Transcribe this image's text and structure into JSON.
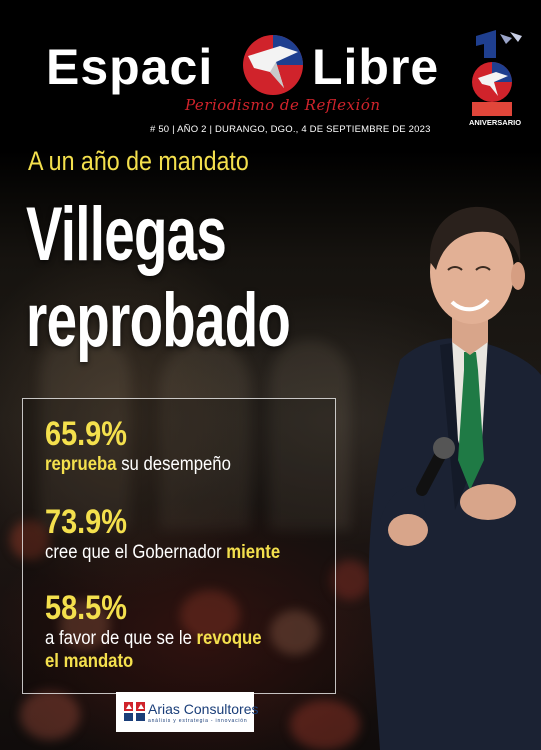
{
  "masthead": {
    "logo_part1": "Espaci",
    "logo_part2": "Libre",
    "tagline": "Periodismo de Reflexión",
    "issue_info": "# 50  | AÑO 2 | DURANGO, DGO., 4 DE SEPTIEMBRE DE 2023",
    "anniversary_label": "ANIVERSARIO",
    "brand_red": "#d0232b"
  },
  "cover": {
    "kicker": "A un año de mandato",
    "headline_line1": "Villegas",
    "headline_line2": "reprobado",
    "accent_color": "#f4e04d"
  },
  "stats": [
    {
      "value": "65.9%",
      "text_highlight": "reprueba",
      "text_rest": " su desempeño"
    },
    {
      "value": "73.9%",
      "text_pre": "cree que el Gobernador ",
      "text_highlight": "miente"
    },
    {
      "value": "58.5%",
      "text_pre": "a favor de que se le ",
      "text_highlight": "revoque",
      "text_highlight2": "el mandato"
    }
  ],
  "sponsor": {
    "name": "Arias Consultores",
    "subtitle": "análisis y estrategia - innovación"
  }
}
